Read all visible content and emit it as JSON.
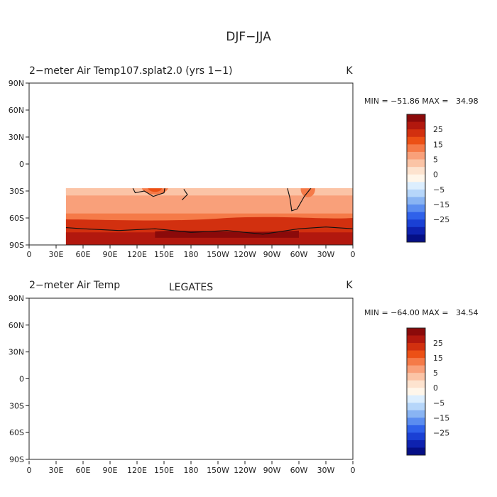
{
  "figure": {
    "title": "DJF−JJA"
  },
  "panels": [
    {
      "title_left": "2−meter Air Temp107.splat2.0 (yrs 1−1)",
      "title_center": "",
      "unit": "K",
      "stats": "MIN = −51.86 MAX =   34.98"
    },
    {
      "title_left": "2−meter Air Temp",
      "title_center": "LEGATES",
      "unit": "K",
      "stats": "MIN = −64.00 MAX =   34.54"
    }
  ],
  "axes": {
    "lon_ticks": [
      "0",
      "30E",
      "60E",
      "90E",
      "120E",
      "150E",
      "180",
      "150W",
      "120W",
      "90W",
      "60W",
      "30W",
      "0"
    ],
    "lat_ticks": [
      "90N",
      "60N",
      "30N",
      "0",
      "30S",
      "60S",
      "90S"
    ]
  },
  "colorbar": {
    "labels": [
      "25",
      "15",
      "5",
      "0",
      "−5",
      "−15",
      "−25"
    ],
    "colors": [
      "#8b0a0a",
      "#b2180e",
      "#d2300f",
      "#ec5015",
      "#f57a48",
      "#f9a07a",
      "#fbc4a6",
      "#fde3cf",
      "#fff6ea",
      "#dceefe",
      "#b6d6fa",
      "#89b4f3",
      "#5b8df0",
      "#2f61ea",
      "#1a40d4",
      "#0e22b0",
      "#050f86"
    ]
  }
}
